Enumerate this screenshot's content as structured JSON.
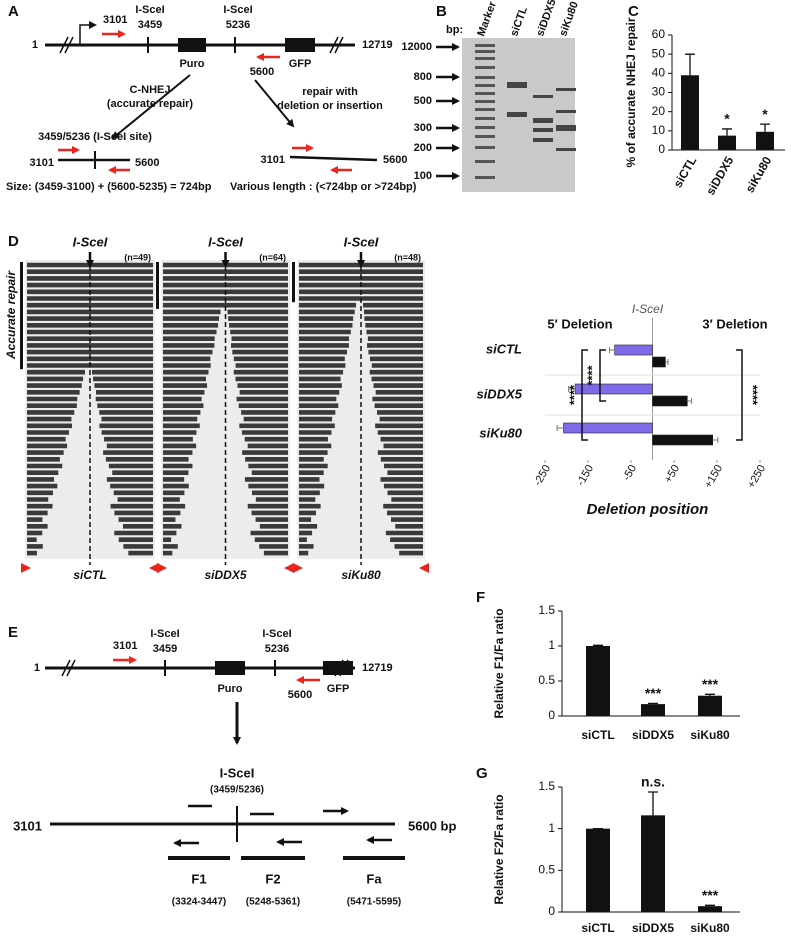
{
  "panel_labels": {
    "a": "A",
    "b": "B",
    "c": "C",
    "d": "D",
    "e": "E",
    "f": "F",
    "g": "G"
  },
  "panel_a": {
    "start": "1",
    "end": "12719",
    "primer_f": "3101",
    "site1_name": "I-SceI",
    "site1_pos": "3459",
    "site2_name": "I-SceI",
    "site2_pos": "5236",
    "primer_r": "5600",
    "puro": "Puro",
    "gfp": "GFP",
    "path1_line1": "C-NHEJ",
    "path1_line2": "(accurate repair)",
    "path2_line1": "repair with",
    "path2_line2": "deletion or insertion",
    "product1_site": "3459/5236 (I-SceI site)",
    "product1_left": "3101",
    "product1_right": "5600",
    "product1_size": "Size: (3459-3100) + (5600-5235) = 724bp",
    "product2_left": "3101",
    "product2_right": "5600",
    "product2_size": "Various length : (<724bp or >724bp)"
  },
  "panel_b": {
    "unit": "bp:",
    "markers": [
      "12000",
      "800",
      "500",
      "300",
      "200",
      "100"
    ],
    "lanes": [
      "Marker",
      "siCTL",
      "siDDX5",
      "siKu80"
    ]
  },
  "panel_d": {
    "bracket_label": "Accurate repair",
    "groups": [
      {
        "name": "siCTL",
        "site": "I-SceI",
        "n": "(n=49)"
      },
      {
        "name": "siDDX5",
        "site": "I-SceI",
        "n": "(n=64)"
      },
      {
        "name": "siKu80",
        "site": "I-SceI",
        "n": "(n=48)"
      }
    ]
  },
  "panel_e": {
    "start": "1",
    "end": "12719",
    "primer_f": "3101",
    "site1_name": "I-SceI",
    "site1_pos": "3459",
    "site2_name": "I-SceI",
    "site2_pos": "5236",
    "primer_r": "5600",
    "puro": "Puro",
    "gfp": "GFP",
    "site": "I-SceI",
    "site_pos": "(3459/5236)",
    "left": "3101",
    "right": "5600 bp",
    "amplicons": [
      {
        "name": "F1",
        "range": "(3324-3447)"
      },
      {
        "name": "F2",
        "range": "(5248-5361)"
      },
      {
        "name": "Fa",
        "range": "(5471-5595)"
      }
    ]
  },
  "chart_data": [
    {
      "type": "bar",
      "ylabel": "% of accurate NHEJ repair",
      "categories": [
        "siCTL",
        "siDDX5",
        "siKu80"
      ],
      "values": [
        39,
        7.5,
        9.5
      ],
      "errors": [
        11,
        3.5,
        4
      ],
      "color": "#111111",
      "annotations": [
        {
          "index": 1,
          "text": "*"
        },
        {
          "index": 2,
          "text": "*"
        }
      ],
      "ylim": [
        0,
        60
      ],
      "yticks": [
        0,
        10,
        20,
        30,
        40,
        50,
        60
      ]
    },
    {
      "type": "hbar-diverging",
      "title": "I-SceI",
      "xlabel": "Deletion position",
      "categories": [
        "siCTL",
        "siDDX5",
        "siKu80"
      ],
      "series": [
        {
          "name": "5′ Deletion",
          "color": "#7f6ae8",
          "values": [
            -88,
            -180,
            -207
          ],
          "errors": [
            12,
            15,
            15
          ]
        },
        {
          "name": "3′ Deletion",
          "color": "#111111",
          "values": [
            30,
            81,
            140
          ],
          "errors": [
            6,
            10,
            12
          ]
        }
      ],
      "xlim": [
        -250,
        250
      ],
      "xticks": [
        -250,
        -150,
        -50,
        {
          "value": 50,
          "label": "+50"
        },
        {
          "value": 150,
          "label": "+150"
        },
        {
          "value": 250,
          "label": "+250"
        }
      ],
      "significance": [
        {
          "text": "****",
          "side": "left",
          "from": 0,
          "to": 1
        },
        {
          "text": "****",
          "side": "left",
          "from": 0,
          "to": 2
        },
        {
          "text": "****",
          "side": "right",
          "from": 0,
          "to": 2
        }
      ]
    },
    {
      "type": "bar",
      "ylabel": "Relative F1/Fa ratio",
      "categories": [
        "siCTL",
        "siDDX5",
        "siKu80"
      ],
      "values": [
        1,
        0.17,
        0.29
      ],
      "errors": [
        0.01,
        0.01,
        0.02
      ],
      "color": "#111111",
      "annotations": [
        {
          "index": 1,
          "text": "***"
        },
        {
          "index": 2,
          "text": "***"
        }
      ],
      "ylim": [
        0,
        1.5
      ],
      "yticks": [
        0,
        0.5,
        1,
        1.5
      ]
    },
    {
      "type": "bar",
      "ylabel": "Relative F2/Fa ratio",
      "categories": [
        "siCTL",
        "siDDX5",
        "siKu80"
      ],
      "values": [
        1,
        1.16,
        0.07
      ],
      "errors": [
        0,
        0.28,
        0.01
      ],
      "color": "#111111",
      "annotations": [
        {
          "index": 1,
          "text": "n.s."
        },
        {
          "index": 2,
          "text": "***"
        }
      ],
      "ylim": [
        0,
        1.5
      ],
      "yticks": [
        0,
        0.5,
        1,
        1.5
      ]
    }
  ]
}
